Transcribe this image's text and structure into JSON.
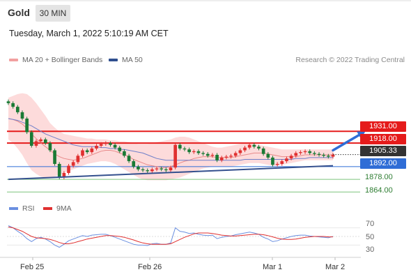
{
  "header": {
    "symbol": "Gold",
    "timeframe": "30 MIN"
  },
  "datetime": "Tuesday, March 1, 2022 5:10:19 AM CET",
  "legend": {
    "bollinger": "MA 20 + Bollinger Bands",
    "ma50": "MA 50"
  },
  "copyright": "Research © 2022 Trading Central",
  "rsi_legend": {
    "rsi": "RSI",
    "ma9": "9MA"
  },
  "colors": {
    "candle_up": "#e03030",
    "candle_down": "#1a7a35",
    "bollinger_fill": "#fdd5d5",
    "ma20": "#e88a8a",
    "ma50": "#6f7fc9",
    "resistance": "#e51b1b",
    "support": "#2f6dd6",
    "level_green": "#7cc47c",
    "trend": "#34508e",
    "rsi": "#6a8fe0",
    "rsi_ma": "#e03030",
    "current_price_tag": "#333333"
  },
  "chart_data": {
    "type": "line",
    "title": "Gold",
    "xlabel": "",
    "ylabel": "",
    "x_ticks": [
      "Feb 25",
      "Feb 26",
      "Mar 1",
      "Mar 2"
    ],
    "ylim": [
      1855,
      1985
    ],
    "current_price": "1905.33",
    "levels": [
      {
        "value": 1931.0,
        "label": "1931.00",
        "kind": "resistance"
      },
      {
        "value": 1918.0,
        "label": "1918.00",
        "kind": "resistance"
      },
      {
        "value": 1892.0,
        "label": "1892.00",
        "kind": "support"
      },
      {
        "value": 1878.0,
        "label": "1878.00",
        "kind": "minor"
      },
      {
        "value": 1864.0,
        "label": "1864.00",
        "kind": "minor"
      }
    ],
    "trendline": [
      [
        0,
        1878
      ],
      [
        70,
        1893
      ]
    ],
    "target_arrow": [
      [
        70,
        1910
      ],
      [
        77,
        1931
      ]
    ],
    "series": [
      {
        "name": "Price",
        "values": [
          1962,
          1958,
          1952,
          1945,
          1930,
          1915,
          1920,
          1922,
          1918,
          1910,
          1895,
          1880,
          1885,
          1893,
          1897,
          1904,
          1910,
          1908,
          1912,
          1915,
          1917,
          1918,
          1916,
          1913,
          1909,
          1904,
          1898,
          1892,
          1889,
          1888,
          1887,
          1889,
          1890,
          1889,
          1888,
          1891,
          1916,
          1912,
          1911,
          1908,
          1909,
          1907,
          1906,
          1904,
          1905,
          1899,
          1902,
          1903,
          1904,
          1907,
          1910,
          1913,
          1916,
          1914,
          1912,
          1906,
          1902,
          1894,
          1895,
          1898,
          1901,
          1904,
          1907,
          1908,
          1909,
          1907,
          1906,
          1905,
          1904,
          1903,
          1905.33
        ]
      },
      {
        "name": "MA 20",
        "values": [
          1945,
          1944,
          1942,
          1939,
          1934,
          1928,
          1923,
          1918,
          1914,
          1910,
          1906,
          1903,
          1901,
          1900,
          1899,
          1900,
          1901,
          1903,
          1905,
          1907,
          1909,
          1910,
          1910,
          1909,
          1907,
          1905,
          1903,
          1900,
          1898,
          1896,
          1894,
          1893,
          1892,
          1891,
          1891,
          1892,
          1894,
          1896,
          1898,
          1899,
          1901,
          1902,
          1903,
          1903,
          1903,
          1902,
          1902,
          1902,
          1902,
          1903,
          1904,
          1905,
          1906,
          1907,
          1907,
          1907,
          1906,
          1905,
          1904,
          1903,
          1903,
          1903,
          1903,
          1904,
          1905,
          1905,
          1905,
          1905,
          1905,
          1905,
          1905
        ]
      },
      {
        "name": "MA 50",
        "values": [
          1945,
          1944,
          1943,
          1941,
          1939,
          1937,
          1934,
          1931,
          1928,
          1926,
          1924,
          1922,
          1920,
          1918,
          1916,
          1915,
          1914,
          1914,
          1914,
          1914,
          1913,
          1913,
          1912,
          1912,
          1911,
          1911,
          1910,
          1909,
          1908,
          1907,
          1905,
          1903,
          1901,
          1900,
          1899,
          1899,
          1899,
          1899,
          1899,
          1899,
          1899,
          1899,
          1899,
          1899,
          1899,
          1899,
          1899,
          1899,
          1899,
          1899,
          1899,
          1900,
          1900,
          1900,
          1900,
          1900,
          1900,
          1900,
          1900,
          1900,
          1900,
          1900,
          1901,
          1901,
          1901,
          1902,
          1902,
          1902,
          1902,
          1902,
          1902
        ]
      },
      {
        "name": "BB Upper",
        "values": [
          1968,
          1970,
          1972,
          1973,
          1972,
          1968,
          1962,
          1955,
          1948,
          1940,
          1935,
          1931,
          1928,
          1927,
          1926,
          1925,
          1924,
          1923,
          1923,
          1922,
          1922,
          1922,
          1921,
          1921,
          1920,
          1920,
          1919,
          1918,
          1917,
          1917,
          1917,
          1918,
          1919,
          1920,
          1921,
          1922,
          1924,
          1925,
          1925,
          1924,
          1922,
          1920,
          1918,
          1916,
          1914,
          1913,
          1913,
          1914,
          1915,
          1916,
          1917,
          1918,
          1918,
          1917,
          1916,
          1915,
          1914,
          1913,
          1912,
          1911,
          1911,
          1911,
          1911,
          1911,
          1911,
          1911,
          1911,
          1911,
          1911,
          1911,
          1911
        ]
      },
      {
        "name": "BB Lower",
        "values": [
          1922,
          1918,
          1912,
          1905,
          1896,
          1888,
          1884,
          1881,
          1880,
          1880,
          1881,
          1883,
          1885,
          1887,
          1889,
          1891,
          1893,
          1895,
          1896,
          1897,
          1898,
          1898,
          1897,
          1895,
          1892,
          1889,
          1886,
          1883,
          1880,
          1878,
          1877,
          1877,
          1877,
          1877,
          1877,
          1878,
          1879,
          1880,
          1882,
          1884,
          1886,
          1888,
          1890,
          1891,
          1892,
          1892,
          1892,
          1892,
          1892,
          1893,
          1894,
          1895,
          1896,
          1896,
          1896,
          1895,
          1894,
          1893,
          1893,
          1894,
          1895,
          1896,
          1897,
          1898,
          1899,
          1899,
          1899,
          1899,
          1899,
          1899,
          1899
        ]
      },
      {
        "name": "RSI",
        "values": [
          75,
          70,
          62,
          55,
          45,
          38,
          45,
          48,
          44,
          38,
          30,
          25,
          32,
          40,
          44,
          48,
          52,
          50,
          53,
          54,
          55,
          55,
          52,
          48,
          44,
          40,
          36,
          32,
          30,
          30,
          29,
          33,
          34,
          32,
          32,
          35,
          70,
          62,
          60,
          57,
          58,
          55,
          53,
          52,
          53,
          45,
          48,
          50,
          51,
          54,
          56,
          58,
          60,
          58,
          55,
          48,
          44,
          38,
          40,
          44,
          47,
          50,
          52,
          53,
          53,
          51,
          50,
          49,
          48,
          47,
          50
        ]
      },
      {
        "name": "9MA",
        "values": [
          72,
          70,
          66,
          62,
          56,
          50,
          47,
          46,
          45,
          43,
          40,
          36,
          33,
          33,
          35,
          38,
          41,
          44,
          46,
          48,
          50,
          52,
          52,
          51,
          50,
          48,
          45,
          42,
          38,
          35,
          33,
          32,
          32,
          32,
          32,
          33,
          38,
          43,
          48,
          52,
          56,
          58,
          58,
          58,
          57,
          55,
          53,
          52,
          51,
          51,
          52,
          53,
          54,
          55,
          55,
          54,
          52,
          49,
          46,
          44,
          43,
          43,
          44,
          46,
          48,
          49,
          50,
          50,
          50,
          49,
          49
        ]
      }
    ],
    "rsi": {
      "ylim": [
        0,
        100
      ],
      "ticks": [
        "70",
        "50",
        "30"
      ]
    }
  }
}
